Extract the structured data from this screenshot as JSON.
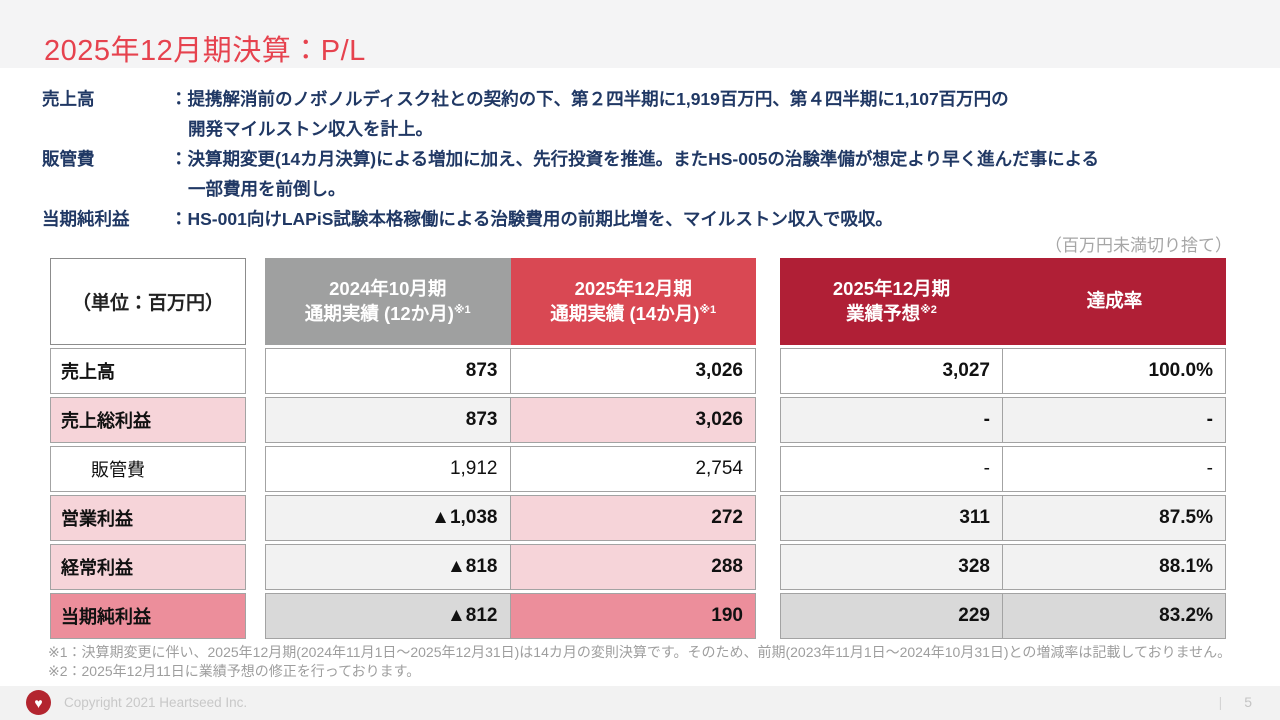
{
  "slide": {
    "title": "2025年12月期決算：P/L",
    "rounding_note": "（百万円未満切り捨て）",
    "bullets": [
      {
        "term": "売上高",
        "line1": "：提携解消前のノボノルディスク社との契約の下、第２四半期に1,919百万円、第４四半期に1,107百万円の",
        "line2": "開発マイルストン収入を計上。"
      },
      {
        "term": "販管費",
        "line1": "：決算期変更(14カ月決算)による増加に加え、先行投資を推進。またHS-005の治験準備が想定より早く進んだ事による",
        "line2": "一部費用を前倒し。"
      },
      {
        "term": "当期純利益",
        "line1": "：HS-001向けLAPiS試験本格稼働による治験費用の前期比増を、マイルストン収入で吸収。",
        "line2": ""
      }
    ]
  },
  "table": {
    "unit_label": "（単位：百万円）",
    "headers": [
      {
        "line1": "2024年10月期",
        "line2": "通期実績 (12か月)",
        "sup": "※1"
      },
      {
        "line1": "2025年12月期",
        "line2": "通期実績 (14か月)",
        "sup": "※1"
      },
      {
        "line1": "2025年12月期",
        "line2": "業績予想",
        "sup": "※2"
      },
      {
        "line1": "達成率"
      }
    ],
    "rows": [
      {
        "label": "売上高",
        "actual_fy2024": "873",
        "actual_fy2025": "3,026",
        "forecast": "3,027",
        "achievement": "100.0%"
      },
      {
        "label": "売上総利益",
        "actual_fy2024": "873",
        "actual_fy2025": "3,026",
        "forecast": "-",
        "achievement": "-"
      },
      {
        "label": "販管費",
        "actual_fy2024": "1,912",
        "actual_fy2025": "2,754",
        "forecast": "-",
        "achievement": "-"
      },
      {
        "label": "営業利益",
        "actual_fy2024": "▲1,038",
        "actual_fy2025": "272",
        "forecast": "311",
        "achievement": "87.5%"
      },
      {
        "label": "経常利益",
        "actual_fy2024": "▲818",
        "actual_fy2025": "288",
        "forecast": "328",
        "achievement": "88.1%"
      },
      {
        "label": "当期純利益",
        "actual_fy2024": "▲812",
        "actual_fy2025": "190",
        "forecast": "229",
        "achievement": "83.2%"
      }
    ]
  },
  "footnotes": [
    "※1：決算期変更に伴い、2025年12月期(2024年11月1日～2025年12月31日)は14カ月の変則決算です。そのため、前期(2023年11月1日～2024年10月31日)との増減率は記載しておりません。",
    "※2：2025年12月11日に業績予想の修正を行っております。"
  ],
  "footer": {
    "heart_icon": "♥",
    "copyright": "Copyright 2021 Heartseed Inc.",
    "divider": "|",
    "page_number": "5"
  },
  "colors": {
    "title_red": "#e6424e",
    "body_navy": "#203864",
    "header_gray": "#9fa0a0",
    "header_red": "#d94853",
    "header_dark_red": "#b01f36",
    "row_pink_light": "#f6d4d9",
    "row_pink_strong": "#ec8e9b",
    "row_gray_light": "#f2f2f2",
    "row_gray_mid": "#d9d9d9",
    "footer_bg": "#f2f2f2",
    "logo_red": "#b3252f"
  }
}
